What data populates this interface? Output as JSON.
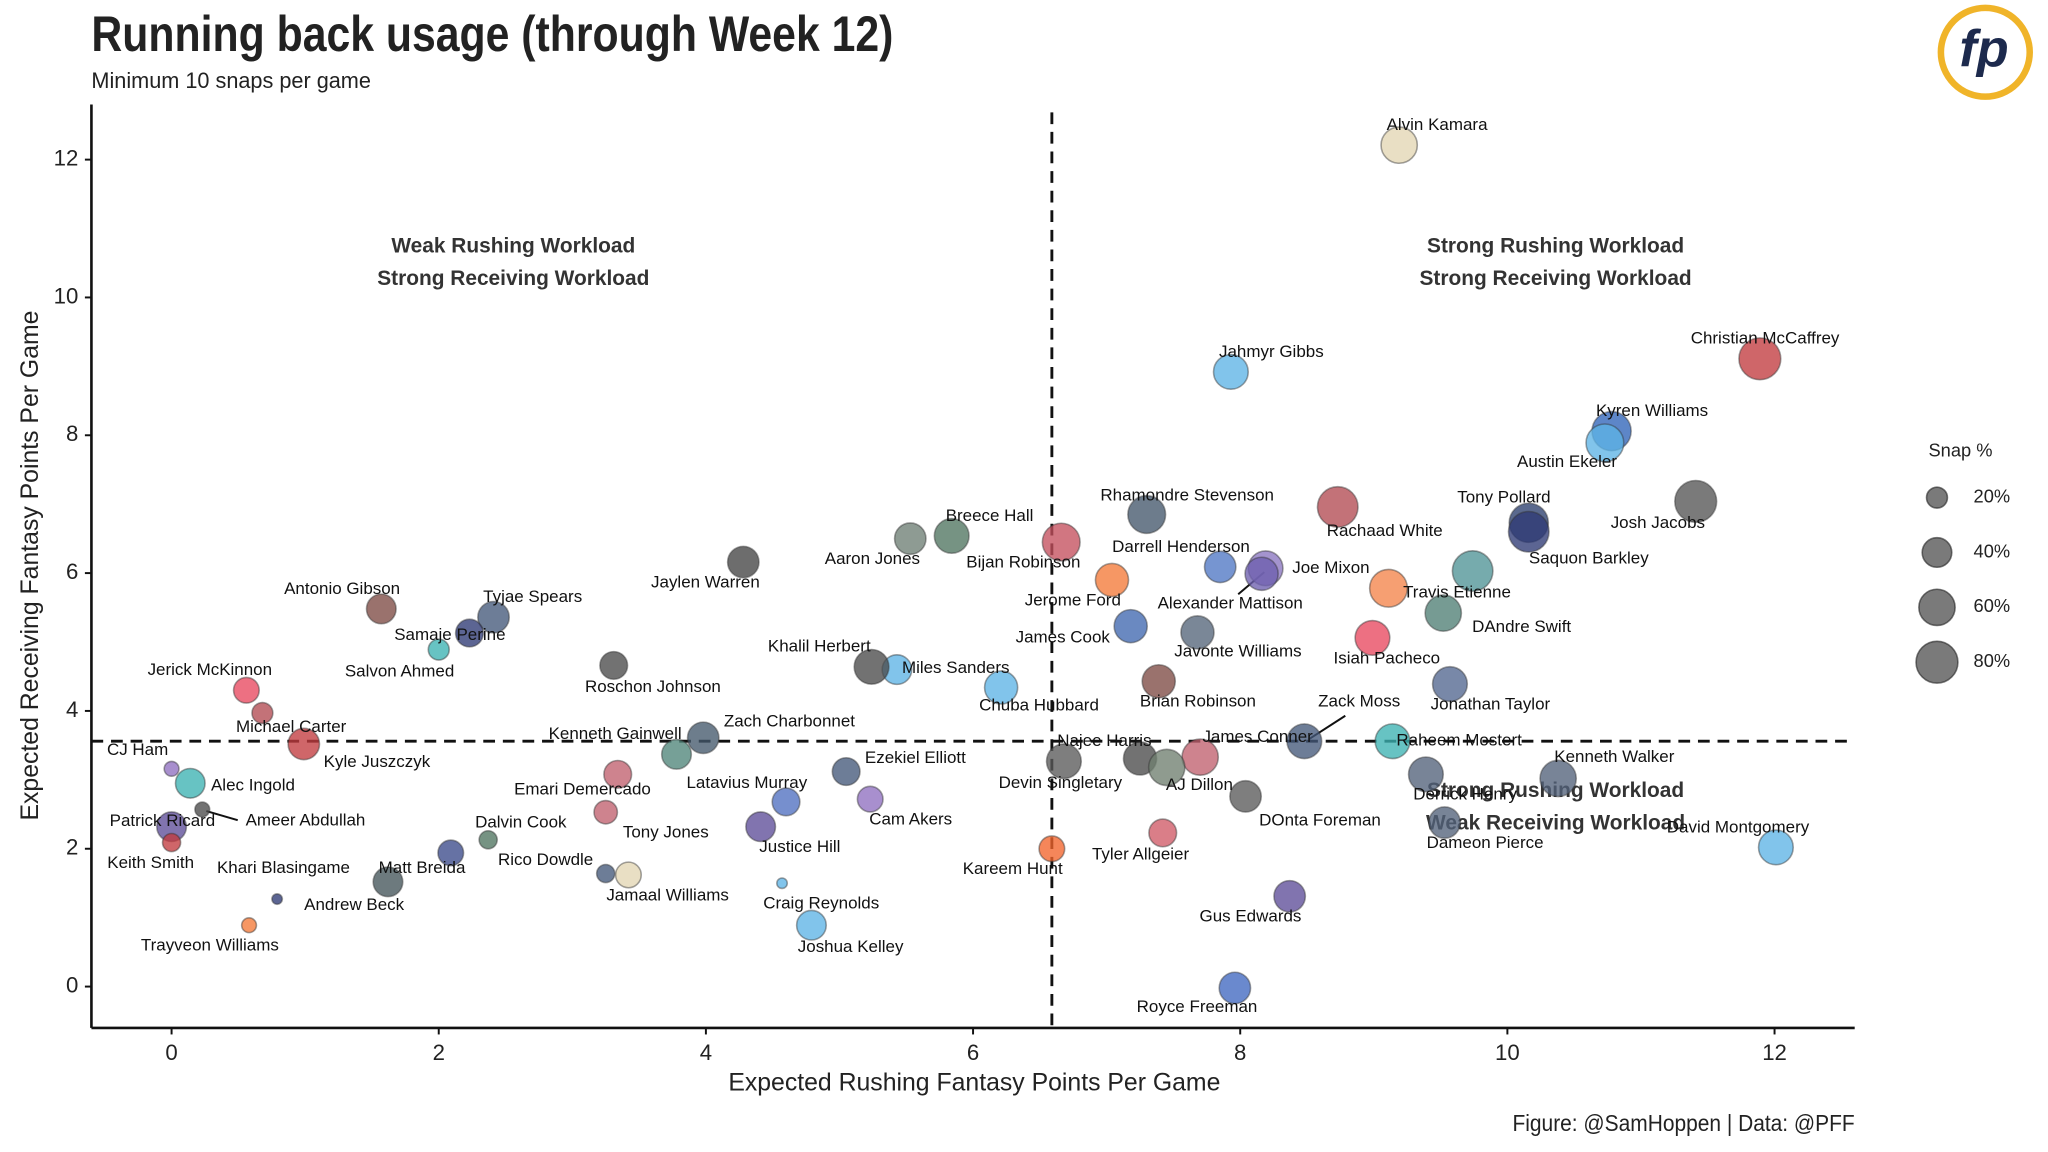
{
  "chart_data": {
    "type": "scatter",
    "title": "Running back usage (through Week 12)",
    "subtitle": "Minimum 10 snaps per game",
    "caption": "Figure: @SamHoppen | Data: @PFF",
    "logo": "fp",
    "x_label": "Expected Rushing Fantasy Points Per Game",
    "y_label": "Expected Receiving Fantasy Points Per Game",
    "xlim": [
      -0.6,
      12.6
    ],
    "ylim": [
      -0.6,
      12.8
    ],
    "xticks": [
      0,
      2,
      4,
      6,
      8,
      10,
      12
    ],
    "yticks": [
      0,
      2,
      4,
      6,
      8,
      10,
      12
    ],
    "grid": false,
    "reference_x": 6.59,
    "reference_y": 3.56,
    "annotations": [
      [
        "Weak Rushing Workload",
        "Strong Receiving Workload"
      ],
      [
        "Strong Rushing Workload",
        "Strong Receiving Workload"
      ],
      [
        "Strong Rushing Workload",
        "Weak Receiving Workload"
      ]
    ],
    "legend_title": "Snap %",
    "legend_sizes": [
      {
        "value": 20,
        "label": "20%"
      },
      {
        "value": 40,
        "label": "40%"
      },
      {
        "value": 60,
        "label": "60%"
      },
      {
        "value": 80,
        "label": "80%"
      }
    ],
    "labels": [
      "Alvin Kamara",
      "Christian McCaffrey",
      "Kyren Williams",
      "Austin Ekeler",
      "Jahmyr Gibbs",
      "Josh Jacobs",
      "Tony Pollard",
      "Saquon Barkley",
      "Rachaad White",
      "Rhamondre Stevenson",
      "Darrell Henderson",
      "Joe Mixon",
      "Alexander Mattison",
      "Bijan Robinson",
      "Breece Hall",
      "Aaron Jones",
      "Jerome Ford",
      "Travis Etienne",
      "DAndre Swift",
      "James Cook",
      "Javonte Williams",
      "Isiah Pacheco",
      "Jonathan Taylor",
      "Brian Robinson",
      "Chuba Hubbard",
      "Miles Sanders",
      "Khalil Herbert",
      "Jaylen Warren",
      "Zack Moss",
      "James Conner",
      "Raheem Mostert",
      "Najee Harris",
      "Devin Singletary",
      "AJ Dillon",
      "Derrick Henry",
      "Kenneth Walker",
      "DOnta Foreman",
      "Dameon Pierce",
      "David Montgomery",
      "Tyler Allgeier",
      "Kareem Hunt",
      "Gus Edwards",
      "Royce Freeman",
      "Kenneth Gainwell",
      "Zach Charbonnet",
      "Ezekiel Elliott",
      "Latavius Murray",
      "Cam Akers",
      "Justice Hill",
      "Craig Reynolds",
      "Joshua Kelley",
      "Jamaal Williams",
      "Rico Dowdle",
      "Tony Jones",
      "Emari Demercado",
      "Roschon Johnson",
      "Tyjae Spears",
      "Samaje Perine",
      "Salvon Ahmed",
      "Antonio Gibson",
      "Dalvin Cook",
      "Matt Breida",
      "Khari Blasingame",
      "Andrew Beck",
      "Trayveon Williams",
      "Kyle Juszczyk",
      "Michael Carter",
      "Jerick McKinnon",
      "CJ Ham",
      "Alec Ingold",
      "Ameer Abdullah",
      "Patrick Ricard",
      "Keith Smith",
      null
    ],
    "x": [
      9.19,
      11.89,
      10.78,
      10.73,
      7.93,
      11.41,
      10.16,
      10.16,
      8.73,
      7.3,
      7.85,
      8.19,
      8.16,
      6.66,
      5.84,
      5.53,
      7.04,
      9.74,
      9.52,
      7.18,
      7.68,
      8.99,
      9.57,
      7.39,
      6.21,
      5.43,
      5.24,
      4.28,
      8.48,
      7.7,
      9.14,
      6.68,
      7.25,
      7.45,
      9.39,
      10.38,
      8.04,
      9.53,
      12.01,
      7.42,
      6.59,
      8.37,
      7.96,
      3.78,
      3.98,
      5.05,
      4.6,
      5.23,
      4.41,
      4.57,
      4.79,
      3.42,
      3.25,
      3.25,
      3.34,
      3.31,
      2.41,
      2.23,
      2.0,
      1.57,
      2.37,
      2.09,
      1.62,
      0.79,
      0.58,
      0.99,
      0.68,
      0.56,
      0.0,
      0.14,
      0.23,
      0.0,
      0.0,
      9.11
    ],
    "y": [
      12.21,
      9.11,
      8.06,
      7.89,
      8.92,
      7.04,
      6.73,
      6.6,
      6.96,
      6.85,
      6.09,
      6.07,
      5.99,
      6.45,
      6.54,
      6.5,
      5.9,
      6.03,
      5.42,
      5.23,
      5.14,
      5.06,
      4.39,
      4.43,
      4.34,
      4.6,
      4.64,
      6.16,
      3.56,
      3.33,
      3.56,
      3.27,
      3.31,
      3.18,
      3.08,
      3.02,
      2.76,
      2.38,
      2.02,
      2.23,
      2.0,
      1.31,
      -0.02,
      3.37,
      3.61,
      3.12,
      2.68,
      2.72,
      2.32,
      1.5,
      0.89,
      1.62,
      1.64,
      2.53,
      3.08,
      4.66,
      5.36,
      5.13,
      4.89,
      5.48,
      2.13,
      1.94,
      1.52,
      1.27,
      0.89,
      3.52,
      3.97,
      4.3,
      3.16,
      2.95,
      2.57,
      2.32,
      2.09,
      5.78
    ],
    "sizes": [
      60,
      80,
      70,
      65,
      55,
      80,
      70,
      75,
      75,
      65,
      45,
      55,
      50,
      65,
      55,
      45,
      50,
      75,
      60,
      50,
      50,
      55,
      55,
      50,
      50,
      40,
      55,
      45,
      55,
      60,
      55,
      55,
      50,
      60,
      55,
      60,
      45,
      45,
      55,
      35,
      30,
      45,
      45,
      40,
      45,
      35,
      35,
      30,
      40,
      5,
      40,
      30,
      15,
      25,
      35,
      35,
      45,
      35,
      20,
      40,
      15,
      30,
      40,
      5,
      10,
      45,
      20,
      30,
      10,
      40,
      10,
      40,
      15,
      65
    ],
    "colors": [
      "#e3d6b4",
      "#c23b3f",
      "#2f64b8",
      "#5eb4e6",
      "#5eb4e6",
      "#555555",
      "#2b3f6e",
      "#2e3a75",
      "#b24a52",
      "#44576b",
      "#4f77c4",
      "#8a76c0",
      "#6d5fae",
      "#c4505e",
      "#4f7560",
      "#6e7f74",
      "#f47a38",
      "#4f9396",
      "#4f7f74",
      "#4068b0",
      "#55657a",
      "#e8485f",
      "#52668f",
      "#7d4a44",
      "#5eb4e6",
      "#5eb4e6",
      "#4a4a4a",
      "#444444",
      "#44587a",
      "#c0606e",
      "#3cb2b2",
      "#5a5a5a",
      "#4a4a4a",
      "#6f7f70",
      "#52627a",
      "#52627a",
      "#5a5a5a",
      "#52627a",
      "#5eb4e6",
      "#d05a66",
      "#f2642c",
      "#5e4d98",
      "#4068c0",
      "#4f857a",
      "#44586c",
      "#44587a",
      "#4f6fc0",
      "#9070c0",
      "#5e4d98",
      "#5eb4e6",
      "#5eb4e6",
      "#e3d6b4",
      "#44587a",
      "#c0606e",
      "#c0606e",
      "#4a4a4a",
      "#44587a",
      "#2e3a75",
      "#3cb2b2",
      "#7d4a44",
      "#4f7560",
      "#3b4a8a",
      "#44545a",
      "#2e3a75",
      "#f47a38",
      "#c23b3f",
      "#b24a52",
      "#e8485f",
      "#9070c0",
      "#3cb2b2",
      "#4a4a4a",
      "#5e4d98",
      "#c23b3f",
      "#f4844a"
    ]
  }
}
